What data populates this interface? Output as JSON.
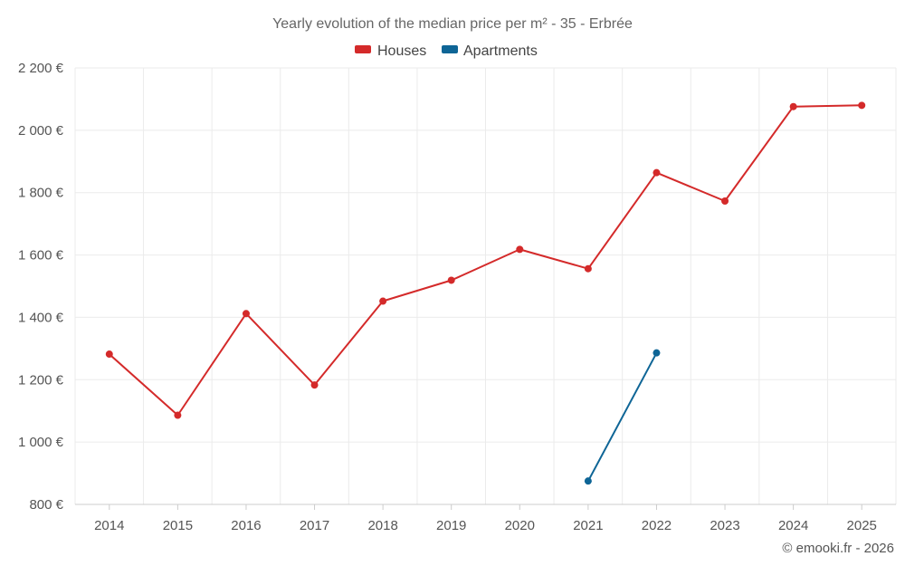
{
  "chart_data": {
    "type": "line",
    "title": "Yearly evolution of the median price per m² - 35 - Erbrée",
    "categories": [
      "2014",
      "2015",
      "2016",
      "2017",
      "2018",
      "2019",
      "2020",
      "2021",
      "2022",
      "2023",
      "2024",
      "2025"
    ],
    "ylim": [
      800,
      2200
    ],
    "yticks": [
      800,
      1000,
      1200,
      1400,
      1600,
      1800,
      2000,
      2200
    ],
    "ytick_labels": [
      "800 €",
      "1 000 €",
      "1 200 €",
      "1 400 €",
      "1 600 €",
      "1 800 €",
      "2 000 €",
      "2 200 €"
    ],
    "grid": true,
    "legend_position": "top-center",
    "series": [
      {
        "name": "Houses",
        "color": "#d42a2a",
        "values": [
          1282,
          1086,
          1412,
          1183,
          1452,
          1519,
          1618,
          1556,
          1864,
          1773,
          2076,
          2080
        ]
      },
      {
        "name": "Apartments",
        "color": "#0e6596",
        "values": [
          null,
          null,
          null,
          null,
          null,
          null,
          null,
          875,
          1286,
          null,
          null,
          null
        ]
      }
    ],
    "credit": "© emooki.fr - 2026"
  }
}
